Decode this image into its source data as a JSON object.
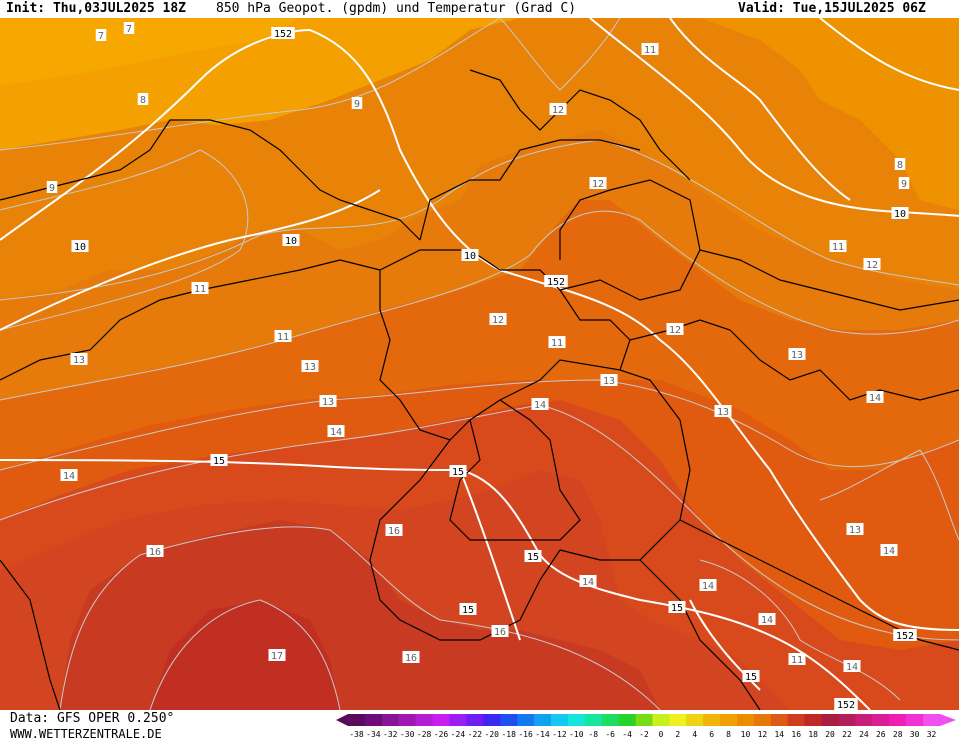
{
  "header": {
    "init": "Init: Thu,03JUL2025 18Z",
    "title": "850 hPa Geopot. (gpdm) und Temperatur (Grad C)",
    "valid": "Valid: Tue,15JUL2025 06Z"
  },
  "footer": {
    "data_source": "Data: GFS OPER 0.250°",
    "website": "WWW.WETTERZENTRALE.DE"
  },
  "legend": {
    "ticks": [
      "-38",
      "-34",
      "-32",
      "-30",
      "-28",
      "-26",
      "-24",
      "-22",
      "-20",
      "-18",
      "-16",
      "-14",
      "-12",
      "-10",
      "-8",
      "-6",
      "-4",
      "-2",
      "0",
      "2",
      "4",
      "6",
      "8",
      "10",
      "12",
      "14",
      "16",
      "18",
      "20",
      "22",
      "24",
      "26",
      "28",
      "30",
      "32"
    ],
    "colors": [
      "#5a0a5a",
      "#6e0c78",
      "#8a1296",
      "#a018b4",
      "#b41ed2",
      "#c81ef0",
      "#9b1ef5",
      "#6e1ef5",
      "#3c28f0",
      "#1e50f0",
      "#1478f0",
      "#14a0f0",
      "#14c8f0",
      "#14e6dc",
      "#14e6a0",
      "#1edc64",
      "#28d228",
      "#78dc14",
      "#c8f01e",
      "#f0f01e",
      "#f0d214",
      "#f0b40a",
      "#f0a000",
      "#ec8c00",
      "#e6780a",
      "#dc5a14",
      "#d03c1e",
      "#c02828",
      "#a81e3c",
      "#b41e5a",
      "#c81e78",
      "#dc1e96",
      "#f01eb4",
      "#f032d2",
      "#f050f0"
    ]
  },
  "map": {
    "temp_colors": {
      "t7": "#f6a800",
      "t8": "#f3a000",
      "t9": "#ef9200",
      "t10": "#e88308",
      "t11": "#e67a0a",
      "t12": "#e4680c",
      "t13": "#e05a10",
      "t14": "#d84a1c",
      "t15": "#d34420",
      "t16": "#c83a22",
      "t17": "#c02f22"
    },
    "geopotential_labels": [
      "152",
      "152",
      "152",
      "152",
      "152"
    ],
    "height_isoline_labels": [
      "10",
      "10",
      "10",
      "10",
      "15",
      "15",
      "15",
      "15",
      "15",
      "15"
    ],
    "temperature_labels": [
      "7",
      "7",
      "8",
      "9",
      "9",
      "8",
      "9",
      "11",
      "11",
      "11",
      "11",
      "12",
      "12",
      "12",
      "12",
      "12",
      "11",
      "13",
      "13",
      "13",
      "13",
      "13",
      "13",
      "14",
      "14",
      "14",
      "14",
      "14",
      "14",
      "14",
      "16",
      "16",
      "16",
      "16",
      "17",
      "13",
      "14",
      "14",
      "11"
    ]
  }
}
